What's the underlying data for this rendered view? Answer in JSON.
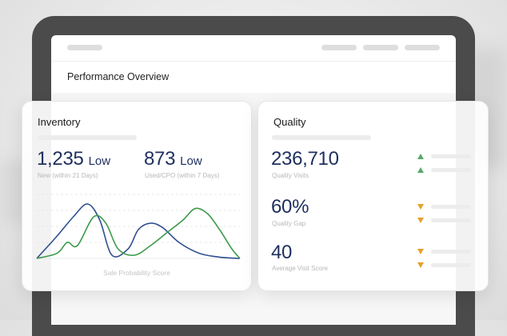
{
  "screen": {
    "title": "Performance Overview"
  },
  "inventory": {
    "title": "Inventory",
    "metrics": [
      {
        "value": "1,235",
        "badge": "Low",
        "label": "New (within 21 Days)"
      },
      {
        "value": "873",
        "badge": "Low",
        "label": "Used/CPO (within 7 Days)"
      }
    ],
    "chart_label": "Sale Probability Score"
  },
  "quality": {
    "title": "Quality",
    "metrics": [
      {
        "value": "236,710",
        "label": "Quality Visits",
        "trend": "up"
      },
      {
        "value": "60%",
        "label": "Quality Gap",
        "trend": "down"
      },
      {
        "value": "40",
        "label": "Average Visit Score",
        "trend": "down"
      }
    ]
  },
  "colors": {
    "navy": "#1e2f5e",
    "series_blue": "#2e4f8f",
    "series_green": "#3e9a4b",
    "trend_up": "#5aa869",
    "trend_down": "#e5a12a",
    "device_frame": "#4b4b4b"
  },
  "icons": {
    "trend_up": "triangle-up-icon",
    "trend_down": "triangle-down-icon"
  },
  "chart_data": {
    "type": "line",
    "title": "",
    "xlabel": "Sale Probability Score",
    "ylabel": "",
    "grid": true,
    "legend": "none",
    "series": [
      {
        "color": "#2e4f8f",
        "x": [
          0,
          10,
          18,
          25,
          31,
          37,
          45,
          50,
          56,
          62,
          70,
          80,
          90,
          100
        ],
        "y": [
          0,
          35,
          65,
          85,
          60,
          5,
          15,
          45,
          55,
          48,
          25,
          8,
          2,
          0
        ]
      },
      {
        "color": "#3e9a4b",
        "x": [
          0,
          10,
          15,
          20,
          28,
          34,
          40,
          48,
          56,
          64,
          72,
          78,
          84,
          90,
          96,
          100
        ],
        "y": [
          0,
          8,
          25,
          20,
          65,
          55,
          15,
          5,
          20,
          40,
          60,
          78,
          70,
          45,
          15,
          0
        ]
      }
    ],
    "xlim": [
      0,
      100
    ],
    "ylim": [
      0,
      100
    ]
  }
}
